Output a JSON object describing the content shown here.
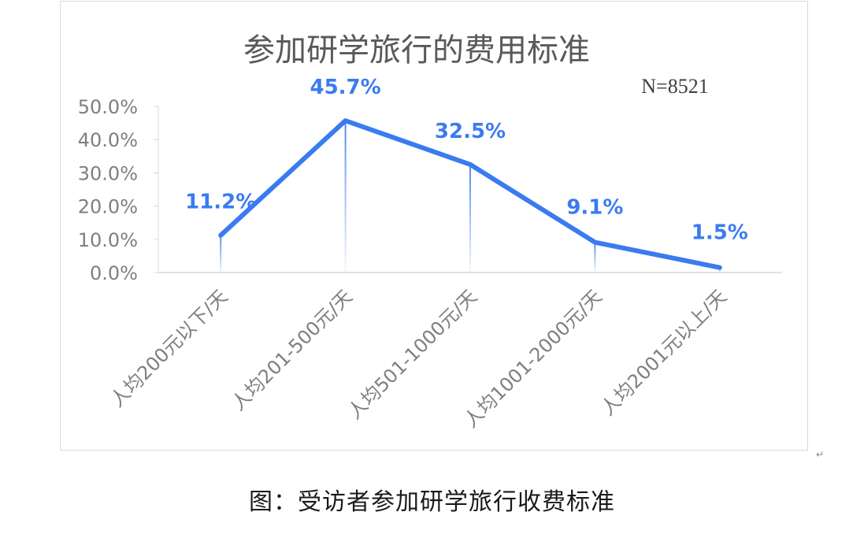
{
  "chart_data": {
    "type": "line",
    "title": "参加研学旅行的费用标准",
    "annotation": "N=8521",
    "categories": [
      "人均200元以下/天",
      "人均201-500元/天",
      "人均501-1000元/天",
      "人均1001-2000元/天",
      "人均2001元以上/天"
    ],
    "series": [
      {
        "values": [
          11.2,
          45.7,
          32.5,
          9.1,
          1.5
        ]
      }
    ],
    "data_labels": [
      "11.2%",
      "45.7%",
      "32.5%",
      "9.1%",
      "1.5%"
    ],
    "ylim": [
      0,
      50
    ],
    "yticks": [
      "0.0%",
      "10.0%",
      "20.0%",
      "30.0%",
      "40.0%",
      "50.0%"
    ],
    "grid": false,
    "line_color": "#3a7bf0"
  },
  "caption": "图：受访者参加研学旅行收费标准"
}
